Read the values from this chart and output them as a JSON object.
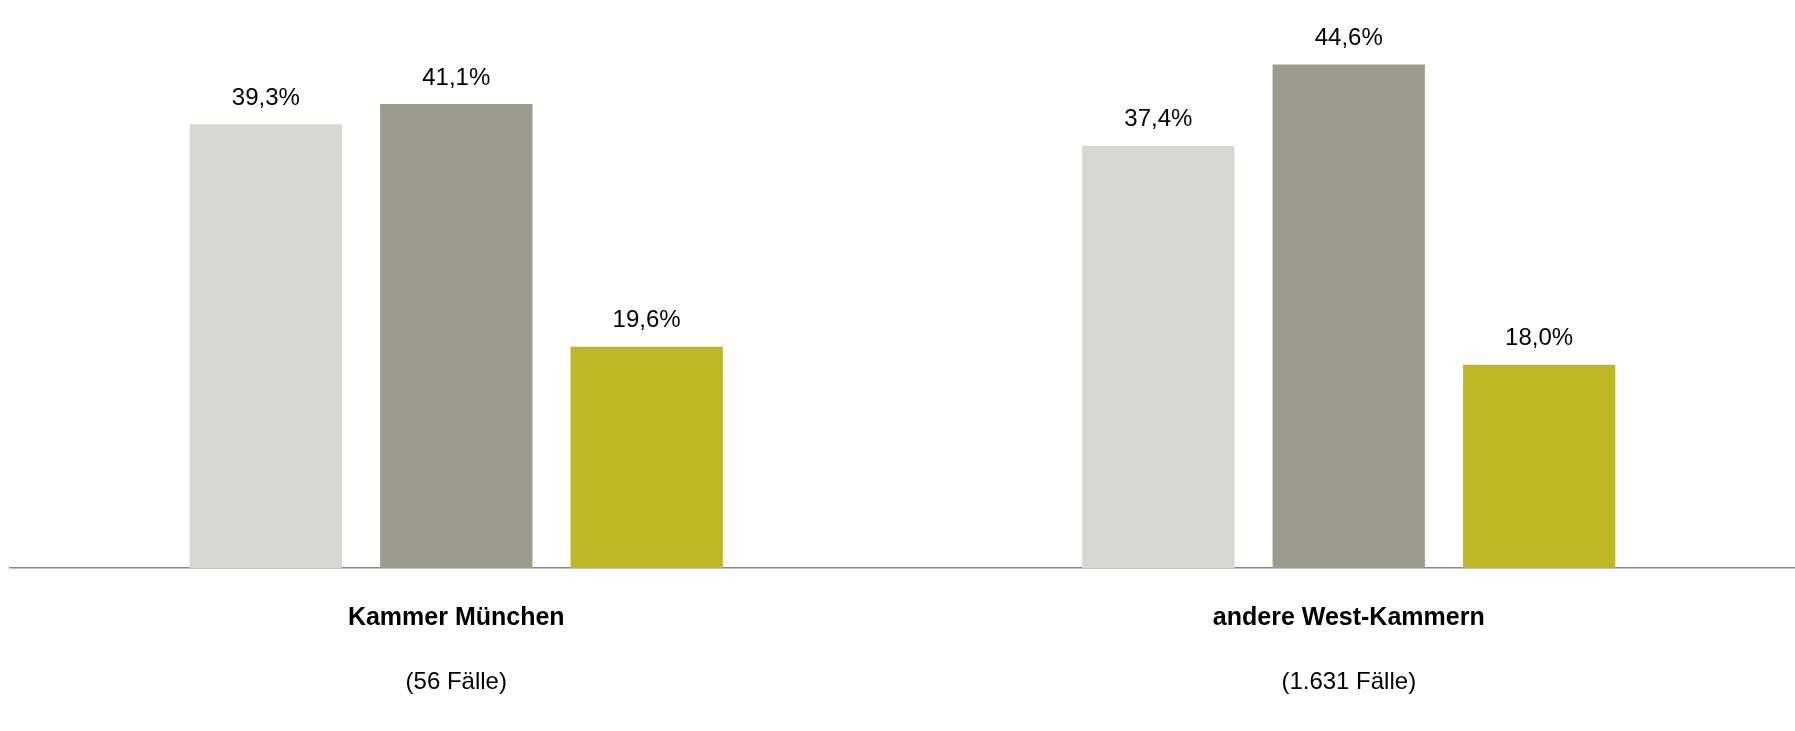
{
  "chart_data": {
    "type": "bar",
    "categories": [
      "Kammer München",
      "andere West-Kammern"
    ],
    "series": [
      {
        "color": "#d7d8d2",
        "values": [
          39.3,
          37.4
        ],
        "value_labels": [
          "39,3%",
          "37,4%"
        ]
      },
      {
        "color": "#9b9c8c",
        "values": [
          41.1,
          44.6
        ],
        "value_labels": [
          "41,1%",
          "44,6%"
        ]
      },
      {
        "color": "#bdb822",
        "values": [
          19.6,
          18.0
        ],
        "value_labels": [
          "19,6%",
          "18,0%"
        ]
      }
    ],
    "annotations": [
      "(56 Fälle)",
      "(1.631 Fälle)"
    ],
    "grid": false,
    "legend": false
  }
}
